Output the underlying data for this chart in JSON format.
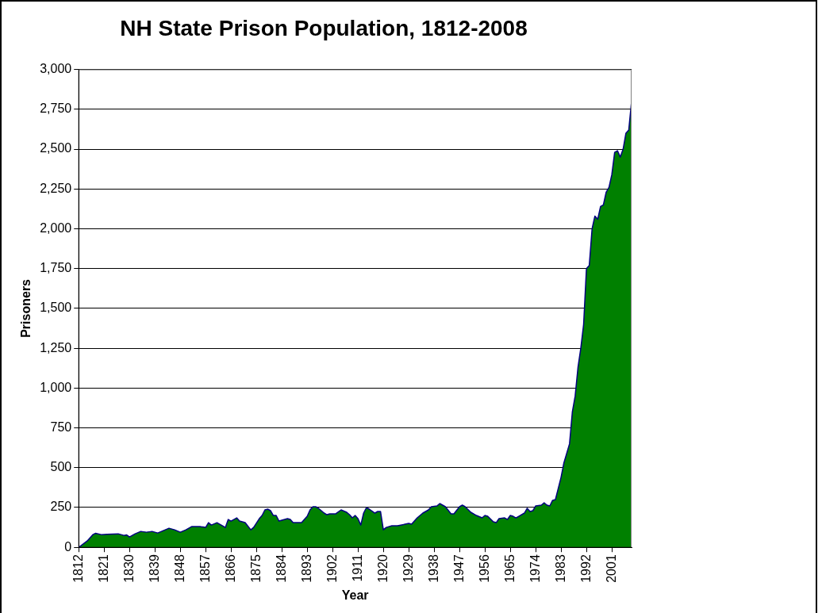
{
  "chart_data": {
    "type": "area",
    "title": "NH State Prison Population, 1812-2008",
    "xlabel": "Year",
    "ylabel": "Prisoners",
    "x": [
      1812,
      1815,
      1817,
      1818,
      1820,
      1822,
      1826,
      1828,
      1829,
      1830,
      1832,
      1834,
      1836,
      1838,
      1840,
      1842,
      1844,
      1846,
      1848,
      1850,
      1852,
      1855,
      1857,
      1858,
      1859,
      1861,
      1863,
      1864,
      1865,
      1866,
      1868,
      1869,
      1871,
      1873,
      1874,
      1876,
      1877,
      1878,
      1879,
      1880,
      1881,
      1882,
      1883,
      1884,
      1886,
      1887,
      1888,
      1891,
      1893,
      1894,
      1895,
      1896,
      1897,
      1899,
      1900,
      1901,
      1903,
      1905,
      1907,
      1908,
      1909,
      1910,
      1911,
      1912,
      1913,
      1914,
      1915,
      1917,
      1918,
      1919,
      1920,
      1921,
      1923,
      1925,
      1929,
      1930,
      1932,
      1934,
      1936,
      1937,
      1939,
      1940,
      1941,
      1942,
      1944,
      1945,
      1947,
      1948,
      1949,
      1951,
      1953,
      1955,
      1956,
      1957,
      1959,
      1960,
      1961,
      1963,
      1964,
      1965,
      1966,
      1967,
      1968,
      1970,
      1971,
      1972,
      1973,
      1974,
      1976,
      1977,
      1978,
      1979,
      1980,
      1981,
      1982,
      1983,
      1984,
      1985,
      1986,
      1987,
      1988,
      1989,
      1990,
      1991,
      1992,
      1993,
      1994,
      1995,
      1996,
      1997,
      1998,
      1999,
      2000,
      2001,
      2002,
      2003,
      2004,
      2005,
      2006,
      2007,
      2008
    ],
    "series": [
      {
        "color": "#008000",
        "values": [
          0,
          40,
          80,
          88,
          80,
          82,
          85,
          75,
          78,
          65,
          85,
          100,
          95,
          100,
          90,
          105,
          120,
          110,
          95,
          110,
          130,
          130,
          125,
          155,
          140,
          155,
          135,
          125,
          175,
          165,
          185,
          165,
          155,
          110,
          125,
          180,
          200,
          235,
          240,
          230,
          200,
          200,
          165,
          170,
          180,
          175,
          155,
          155,
          195,
          235,
          255,
          255,
          245,
          215,
          205,
          210,
          210,
          235,
          220,
          205,
          185,
          200,
          180,
          140,
          215,
          250,
          240,
          215,
          225,
          225,
          110,
          125,
          135,
          135,
          150,
          145,
          185,
          215,
          235,
          255,
          260,
          275,
          265,
          255,
          210,
          210,
          255,
          265,
          255,
          220,
          200,
          185,
          200,
          195,
          160,
          155,
          180,
          185,
          175,
          200,
          195,
          185,
          195,
          215,
          245,
          225,
          230,
          260,
          265,
          280,
          265,
          260,
          295,
          300,
          370,
          440,
          530,
          590,
          650,
          850,
          950,
          1130,
          1250,
          1400,
          1750,
          1770,
          2000,
          2080,
          2060,
          2140,
          2150,
          2230,
          2260,
          2340,
          2480,
          2490,
          2450,
          2500,
          2600,
          2620,
          2800
        ]
      }
    ],
    "xlim": [
      1812,
      2008
    ],
    "xticks": [
      1812,
      1821,
      1830,
      1839,
      1848,
      1857,
      1866,
      1875,
      1884,
      1893,
      1902,
      1911,
      1920,
      1929,
      1938,
      1947,
      1956,
      1965,
      1974,
      1983,
      1992,
      2001
    ],
    "ylim": [
      0,
      3000
    ],
    "yticks": [
      0,
      250,
      500,
      750,
      {
        "value": 1000,
        "label": "1,000"
      },
      {
        "value": 1250,
        "label": "1,250"
      },
      {
        "value": 1500,
        "label": "1,500"
      },
      {
        "value": 1750,
        "label": "1,750"
      },
      {
        "value": 2000,
        "label": "2,000"
      },
      {
        "value": 2250,
        "label": "2,250"
      },
      {
        "value": 2500,
        "label": "2,500"
      },
      {
        "value": 2750,
        "label": "2,750"
      },
      {
        "value": 3000,
        "label": "3,000"
      }
    ],
    "grid": "y",
    "legend": false,
    "marker": "none",
    "line_style": "solid"
  }
}
